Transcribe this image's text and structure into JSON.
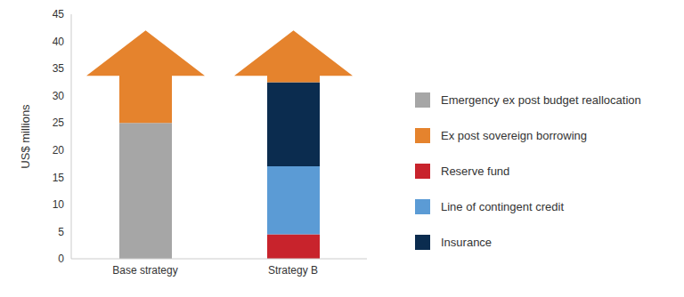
{
  "chart_data": {
    "type": "bar",
    "stacked": true,
    "y_label": "US$ millions",
    "categories": [
      "Base strategy",
      "Strategy B"
    ],
    "ylim": [
      0,
      45
    ],
    "yticks": [
      0,
      5,
      10,
      15,
      20,
      25,
      30,
      35,
      40,
      45
    ],
    "legend": "right",
    "series": [
      {
        "name": "Emergency ex post budget reallocation",
        "color": "#a6a6a6",
        "values": [
          25,
          null
        ]
      },
      {
        "name": "Ex post sovereign borrowing",
        "color": "#e5832d",
        "values": [
          17,
          9.5
        ],
        "marker": "arrow"
      },
      {
        "name": "Reserve fund",
        "color": "#c8232c",
        "values": [
          null,
          4.5
        ]
      },
      {
        "name": "Line of contingent credit",
        "color": "#5b9bd5",
        "values": [
          null,
          12.5
        ]
      },
      {
        "name": "Insurance",
        "color": "#0b2c4f",
        "values": [
          null,
          15.5
        ]
      }
    ]
  }
}
